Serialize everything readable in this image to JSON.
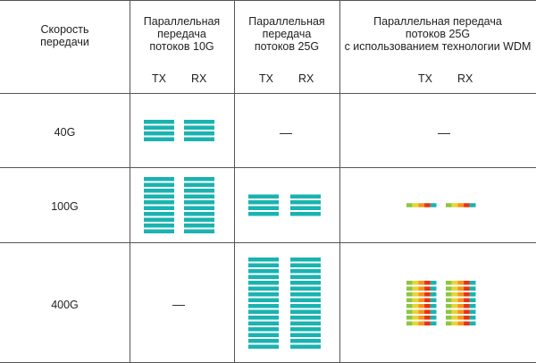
{
  "header": {
    "speed": "Скорость\nпередачи",
    "col1": "Параллельная\nпередача\nпотоков 10G",
    "col2": "Параллельная\nпередача\nпотоков 25G",
    "col3": "Параллельная передача\nпотоков 25G\nс использованием технологии WDM",
    "tx": "TX",
    "rx": "RX"
  },
  "rows": [
    {
      "speed": "40G",
      "lanes10g": 4,
      "lanes25g": null,
      "wdm": null
    },
    {
      "speed": "100G",
      "lanes10g": 10,
      "lanes25g": 4,
      "wdm": 1
    },
    {
      "speed": "400G",
      "lanes10g": null,
      "lanes25g": 16,
      "wdm": 8
    }
  ],
  "na_symbol": "—",
  "colors": {
    "lane": "#1ab3b0",
    "grid": "#555555",
    "wdm": [
      "#8cc63f",
      "#e8d534",
      "#f7941d",
      "#e63312",
      "#1ab3b0"
    ]
  }
}
